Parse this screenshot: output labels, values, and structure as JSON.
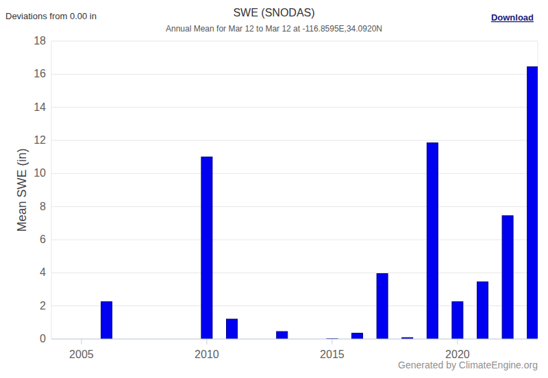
{
  "chart_data": {
    "type": "bar",
    "title": "SWE (SNODAS)",
    "subtitle": "Annual Mean for Mar 12 to Mar 12 at -116.8595E,34.0920N",
    "y_label": "Mean SWE (in)",
    "annotations": [
      "Deviations from 0.00 in",
      "Download",
      "Generated by ClimateEngine.org"
    ],
    "x": [
      2004,
      2005,
      2006,
      2007,
      2008,
      2009,
      2010,
      2011,
      2012,
      2013,
      2014,
      2015,
      2016,
      2017,
      2018,
      2019,
      2020,
      2021,
      2022,
      2023
    ],
    "values": [
      0,
      0,
      2.25,
      0,
      0,
      0,
      11.0,
      1.2,
      0,
      0.45,
      0,
      0.02,
      0.35,
      3.95,
      0.08,
      11.85,
      2.25,
      3.45,
      7.45,
      16.45
    ],
    "color": "#0000f0",
    "xlim": [
      2003.8,
      2023.2
    ],
    "xticks": [
      2005,
      2010,
      2015,
      2020
    ],
    "ylim": [
      0,
      18
    ],
    "yticks": [
      0,
      2,
      4,
      6,
      8,
      10,
      12,
      14,
      16,
      18
    ],
    "grid": true
  }
}
